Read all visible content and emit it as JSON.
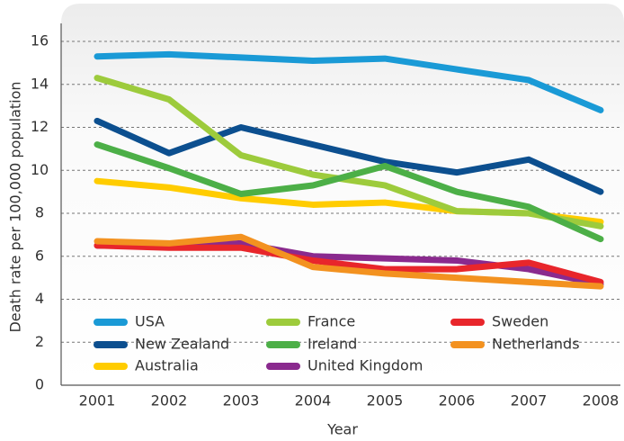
{
  "chart_data": {
    "type": "line",
    "x_label": "Year",
    "y_label": "Death rate per 100,000 population",
    "categories": [
      "2001",
      "2002",
      "2003",
      "2004",
      "2005",
      "2006",
      "2007",
      "2008"
    ],
    "ylim": [
      0,
      16
    ],
    "yticks": [
      0,
      2,
      4,
      6,
      8,
      10,
      12,
      14,
      16
    ],
    "grid": true,
    "series": [
      {
        "name": "USA",
        "color": "#1a9ad6",
        "values": [
          15.3,
          15.4,
          15.25,
          15.1,
          15.2,
          14.7,
          14.2,
          12.8
        ]
      },
      {
        "name": "New Zealand",
        "color": "#0c4f8f",
        "values": [
          12.3,
          10.8,
          12.0,
          11.2,
          10.4,
          9.9,
          10.5,
          9.0
        ]
      },
      {
        "name": "Australia",
        "color": "#ffcc00",
        "values": [
          9.5,
          9.2,
          8.7,
          8.4,
          8.5,
          8.1,
          8.0,
          7.6
        ]
      },
      {
        "name": "France",
        "color": "#9dcb3c",
        "values": [
          14.3,
          13.3,
          10.7,
          9.8,
          9.3,
          8.1,
          8.0,
          7.4
        ]
      },
      {
        "name": "Ireland",
        "color": "#4caf47",
        "values": [
          11.2,
          10.1,
          8.9,
          9.3,
          10.2,
          9.0,
          8.3,
          6.8
        ]
      },
      {
        "name": "United Kingdom",
        "color": "#8a2a8e",
        "values": [
          6.5,
          6.5,
          6.6,
          6.0,
          5.9,
          5.8,
          5.4,
          4.7
        ]
      },
      {
        "name": "Sweden",
        "color": "#e8262b",
        "values": [
          6.5,
          6.4,
          6.4,
          5.8,
          5.4,
          5.4,
          5.7,
          4.8
        ]
      },
      {
        "name": "Netherlands",
        "color": "#f39220",
        "values": [
          6.7,
          6.6,
          6.9,
          5.5,
          5.2,
          5.0,
          4.8,
          4.6
        ]
      }
    ]
  }
}
